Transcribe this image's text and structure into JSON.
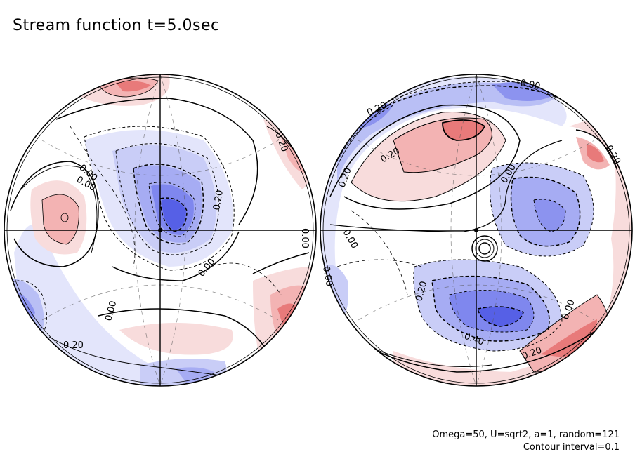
{
  "title": "Stream function t=5.0sec",
  "footnote": {
    "params": "Omega=50, U=sqrt2, a=1, random=121",
    "interval": "Contour interval=0.1"
  },
  "colors": {
    "positive_light": "#f8dcdc",
    "positive_mid": "#f3b3b3",
    "positive_strong": "#e87a7a",
    "negative_light": "#e3e5fb",
    "negative_mid": "#b9bff5",
    "negative_strong": "#6f78ee",
    "negative_core": "#4a55e6"
  },
  "left_hemisphere": {
    "labels": [
      "0.00",
      "0.20",
      "0.00",
      "0.00",
      "0.20",
      "0.00",
      "0.00",
      "0.20"
    ]
  },
  "right_hemisphere": {
    "labels": [
      "0.00",
      "0.20",
      "0.20",
      "0.20",
      "0.20",
      "0.00",
      "0.00",
      "0.00",
      "0.20",
      "0.40",
      "0.00",
      "0.20"
    ]
  }
}
